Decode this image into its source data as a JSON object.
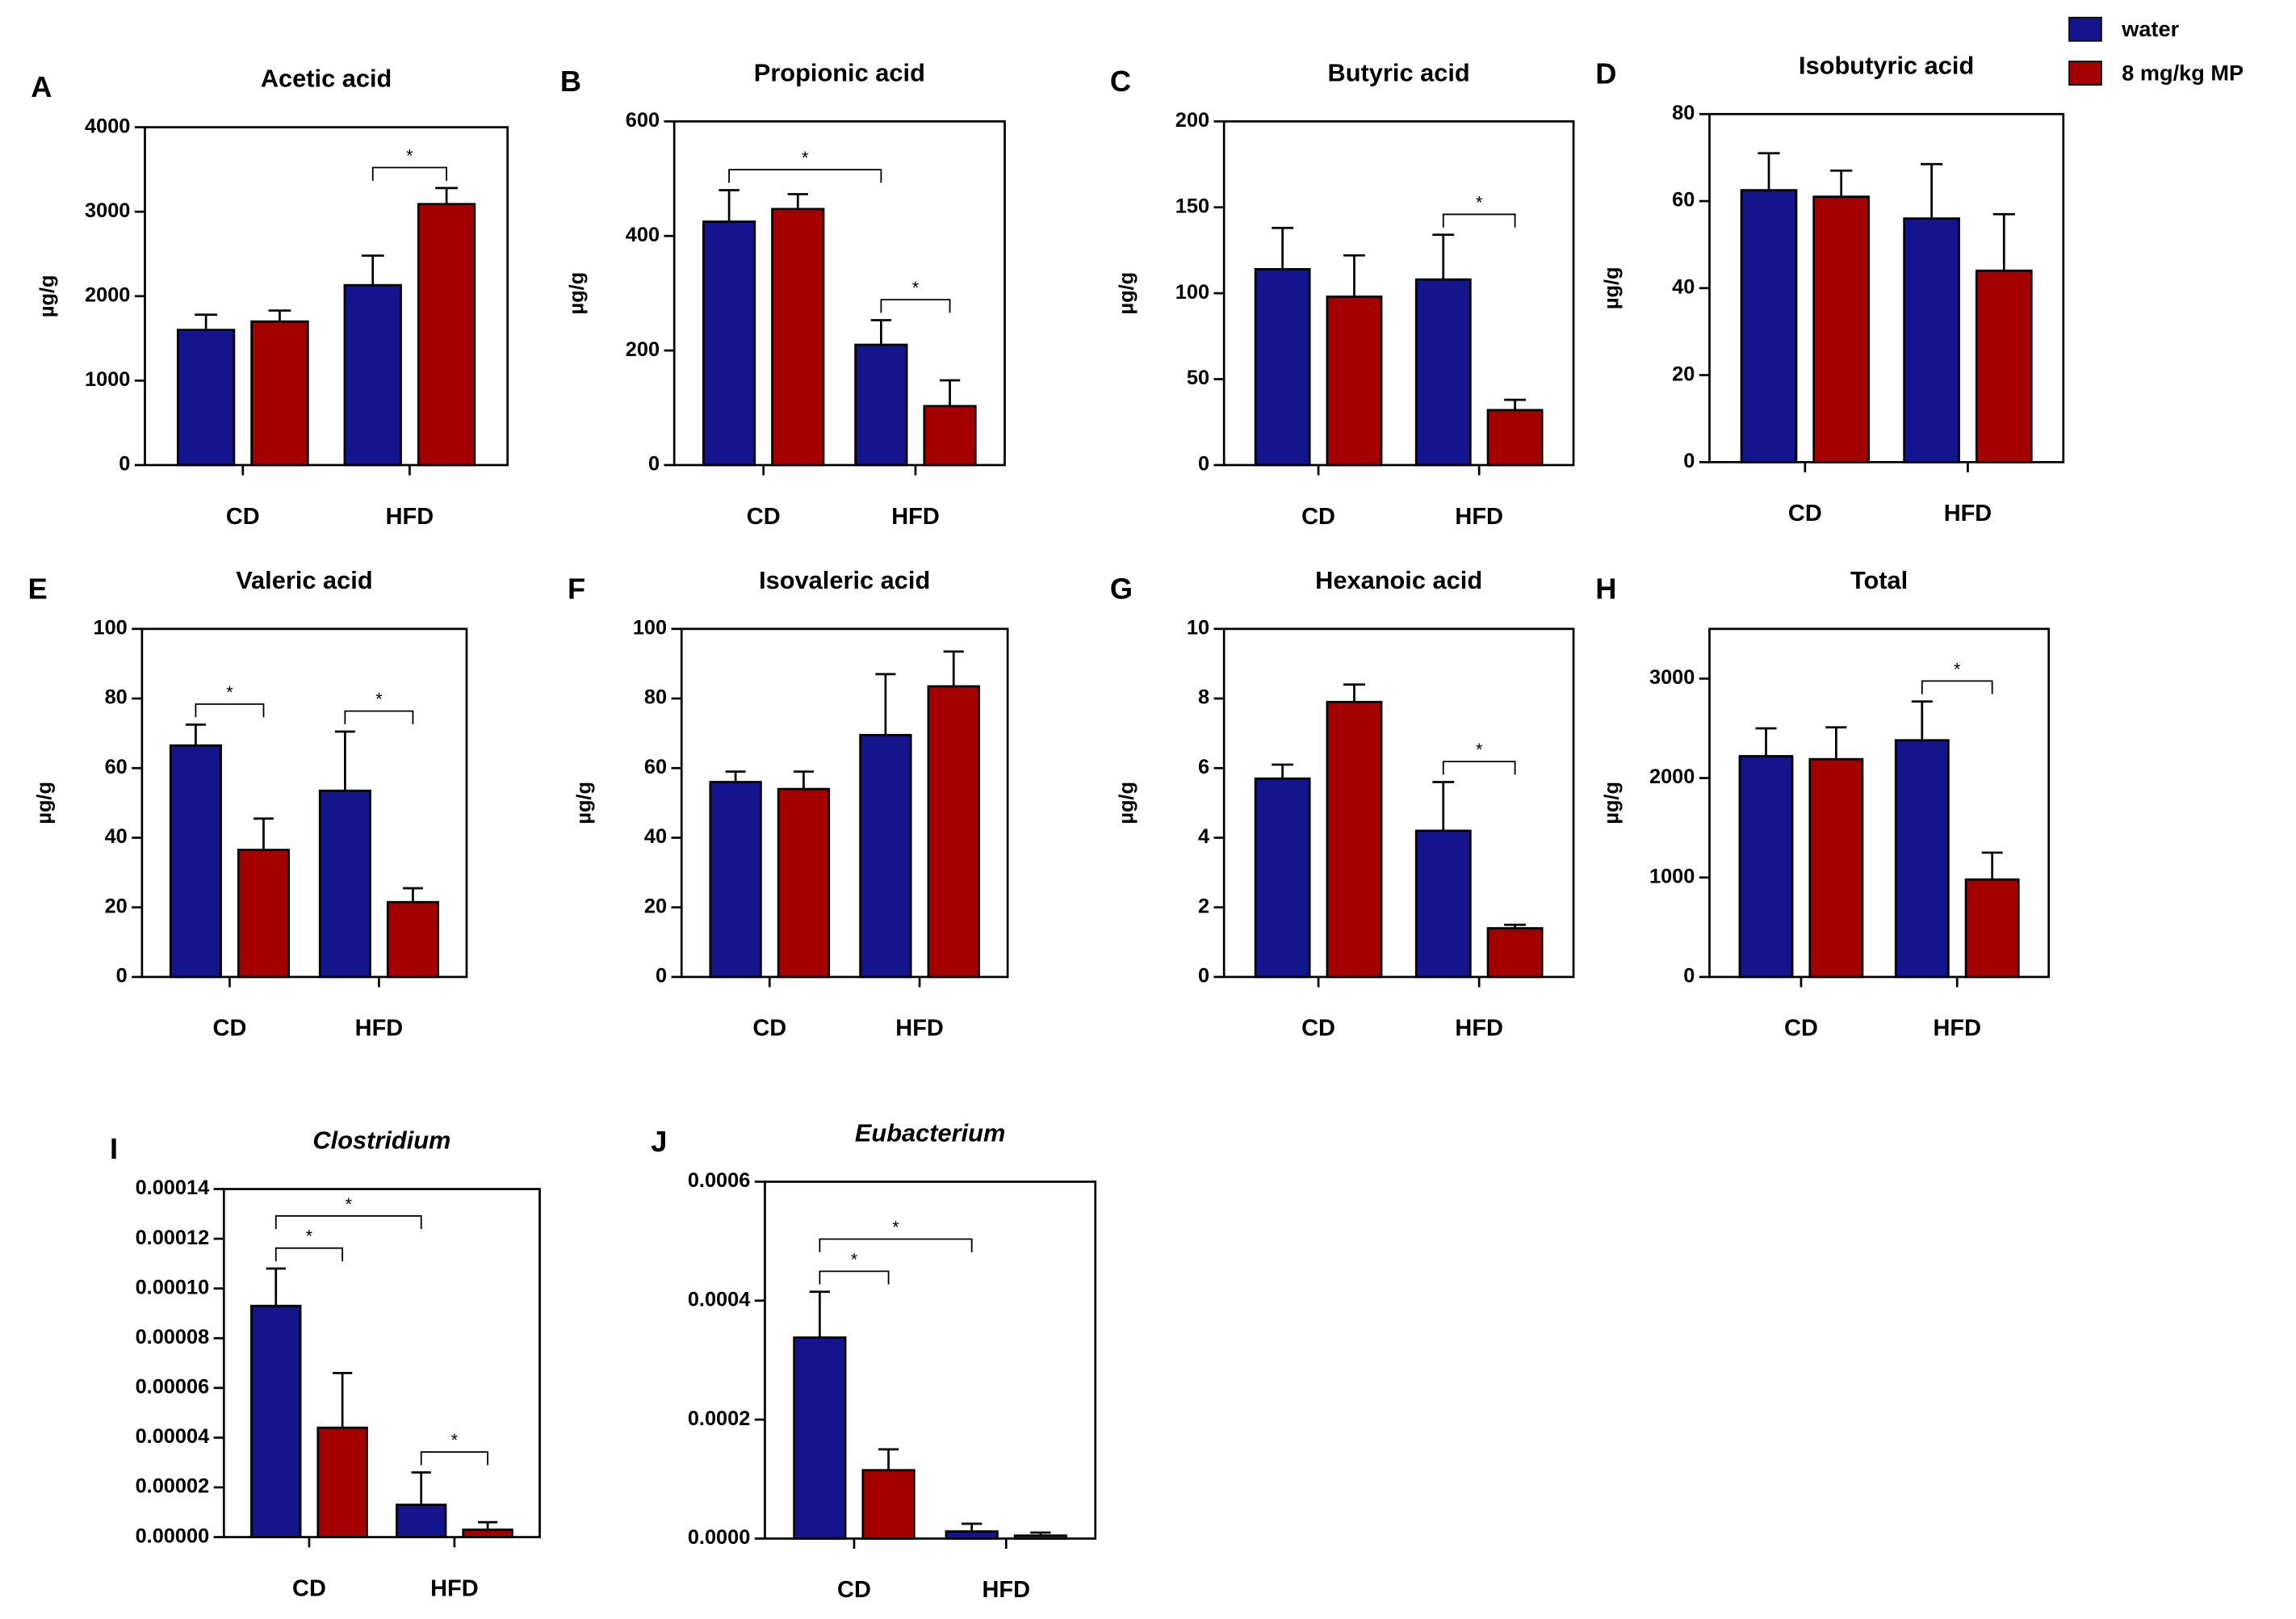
{
  "chart_data": [
    {
      "type": "bar",
      "panel": "A",
      "title": "Acetic acid",
      "y_label": "µg/g",
      "categories": [
        "CD",
        "HFD"
      ],
      "series": [
        {
          "name": "water",
          "color": "#14148c",
          "values": [
            1600,
            2130
          ],
          "errors": [
            180,
            350
          ]
        },
        {
          "name": "8 mg/kg MP",
          "color": "#a50000",
          "values": [
            1700,
            3090
          ],
          "errors": [
            130,
            190
          ]
        }
      ],
      "ylim": [
        0,
        4000
      ],
      "yticks": [
        0,
        1000,
        2000,
        3000,
        4000
      ],
      "annotations": [
        {
          "text": "*",
          "from": [
            1,
            0
          ],
          "to": [
            1,
            1
          ]
        }
      ]
    },
    {
      "type": "bar",
      "panel": "B",
      "title": "Propionic acid",
      "y_label": "µg/g",
      "categories": [
        "CD",
        "HFD"
      ],
      "series": [
        {
          "name": "water",
          "color": "#14148c",
          "values": [
            425,
            210
          ],
          "errors": [
            55,
            43
          ]
        },
        {
          "name": "8 mg/kg MP",
          "color": "#a50000",
          "values": [
            447,
            103
          ],
          "errors": [
            26,
            45
          ]
        }
      ],
      "ylim": [
        0,
        600
      ],
      "yticks": [
        0,
        200,
        400,
        600
      ],
      "annotations": [
        {
          "text": "*",
          "from": [
            0,
            0
          ],
          "to": [
            1,
            0
          ]
        },
        {
          "text": "*",
          "from": [
            1,
            0
          ],
          "to": [
            1,
            1
          ]
        }
      ]
    },
    {
      "type": "bar",
      "panel": "C",
      "title": "Butyric acid",
      "y_label": "µg/g",
      "categories": [
        "CD",
        "HFD"
      ],
      "series": [
        {
          "name": "water",
          "color": "#14148c",
          "values": [
            114,
            108
          ],
          "errors": [
            24,
            26
          ]
        },
        {
          "name": "8 mg/kg MP",
          "color": "#a50000",
          "values": [
            98,
            32
          ],
          "errors": [
            24,
            6
          ]
        }
      ],
      "ylim": [
        0,
        200
      ],
      "yticks": [
        0,
        50,
        100,
        150,
        200
      ],
      "annotations": [
        {
          "text": "*",
          "from": [
            1,
            0
          ],
          "to": [
            1,
            1
          ]
        }
      ]
    },
    {
      "type": "bar",
      "panel": "D",
      "title": "Isobutyric acid",
      "y_label": "µg/g",
      "categories": [
        "CD",
        "HFD"
      ],
      "series": [
        {
          "name": "water",
          "color": "#14148c",
          "values": [
            62.5,
            56
          ],
          "errors": [
            8.5,
            12.5
          ]
        },
        {
          "name": "8 mg/kg MP",
          "color": "#a50000",
          "values": [
            61,
            44
          ],
          "errors": [
            6,
            13
          ]
        }
      ],
      "ylim": [
        0,
        80
      ],
      "yticks": [
        0,
        20,
        40,
        60,
        80
      ],
      "annotations": []
    },
    {
      "type": "bar",
      "panel": "E",
      "title": "Valeric acid",
      "y_label": "µg/g",
      "categories": [
        "CD",
        "HFD"
      ],
      "series": [
        {
          "name": "water",
          "color": "#14148c",
          "values": [
            66.5,
            53.5
          ],
          "errors": [
            6,
            17
          ]
        },
        {
          "name": "8 mg/kg MP",
          "color": "#a50000",
          "values": [
            36.5,
            21.5
          ],
          "errors": [
            9,
            4
          ]
        }
      ],
      "ylim": [
        0,
        100
      ],
      "yticks": [
        0,
        20,
        40,
        60,
        80,
        100
      ],
      "annotations": [
        {
          "text": "*",
          "from": [
            0,
            0
          ],
          "to": [
            0,
            1
          ]
        },
        {
          "text": "*",
          "from": [
            1,
            0
          ],
          "to": [
            1,
            1
          ]
        }
      ]
    },
    {
      "type": "bar",
      "panel": "F",
      "title": "Isovaleric acid",
      "y_label": "µg/g",
      "categories": [
        "CD",
        "HFD"
      ],
      "series": [
        {
          "name": "water",
          "color": "#14148c",
          "values": [
            56,
            69.5
          ],
          "errors": [
            3,
            17.5
          ]
        },
        {
          "name": "8 mg/kg MP",
          "color": "#a50000",
          "values": [
            54,
            83.5
          ],
          "errors": [
            5,
            10
          ]
        }
      ],
      "ylim": [
        0,
        100
      ],
      "yticks": [
        0,
        20,
        40,
        60,
        80,
        100
      ],
      "annotations": []
    },
    {
      "type": "bar",
      "panel": "G",
      "title": "Hexanoic acid",
      "y_label": "µg/g",
      "categories": [
        "CD",
        "HFD"
      ],
      "series": [
        {
          "name": "water",
          "color": "#14148c",
          "values": [
            5.7,
            4.2
          ],
          "errors": [
            0.4,
            1.4
          ]
        },
        {
          "name": "8 mg/kg MP",
          "color": "#a50000",
          "values": [
            7.9,
            1.4
          ],
          "errors": [
            0.5,
            0.1
          ]
        }
      ],
      "ylim": [
        0,
        10
      ],
      "yticks": [
        0,
        2,
        4,
        6,
        8,
        10
      ],
      "annotations": [
        {
          "text": "*",
          "from": [
            1,
            0
          ],
          "to": [
            1,
            1
          ]
        }
      ]
    },
    {
      "type": "bar",
      "panel": "H",
      "title": "Total",
      "y_label": "µg/g",
      "categories": [
        "CD",
        "HFD"
      ],
      "series": [
        {
          "name": "water",
          "color": "#14148c",
          "values": [
            2220,
            2380
          ],
          "errors": [
            280,
            390
          ]
        },
        {
          "name": "8 mg/kg MP",
          "color": "#a50000",
          "values": [
            2190,
            980
          ],
          "errors": [
            320,
            270
          ]
        }
      ],
      "ylim": [
        0,
        3500
      ],
      "yticks": [
        0,
        1000,
        2000,
        3000
      ],
      "annotations": [
        {
          "text": "*",
          "from": [
            1,
            0
          ],
          "to": [
            1,
            1
          ]
        }
      ]
    },
    {
      "type": "bar",
      "panel": "I",
      "title": "Clostridium",
      "title_italic": true,
      "categories": [
        "CD",
        "HFD"
      ],
      "series": [
        {
          "name": "water",
          "color": "#14148c",
          "values": [
            9.3e-05,
            1.3e-05
          ],
          "errors": [
            1.5e-05,
            1.3e-05
          ]
        },
        {
          "name": "8 mg/kg MP",
          "color": "#a50000",
          "values": [
            4.4e-05,
            3e-06
          ],
          "errors": [
            2.2e-05,
            3e-06
          ]
        }
      ],
      "ylim": [
        0,
        0.00014
      ],
      "yticks": [
        {
          "value": 0,
          "label": "0.00000"
        },
        {
          "value": 2e-05,
          "label": "0.00002"
        },
        {
          "value": 4e-05,
          "label": "0.00004"
        },
        {
          "value": 6e-05,
          "label": "0.00006"
        },
        {
          "value": 8e-05,
          "label": "0.00008"
        },
        {
          "value": 0.0001,
          "label": "0.00010"
        },
        {
          "value": 0.00012,
          "label": "0.00012"
        },
        {
          "value": 0.00014,
          "label": "0.00014"
        }
      ],
      "annotations": [
        {
          "text": "*",
          "from": [
            0,
            0
          ],
          "to": [
            0,
            1
          ]
        },
        {
          "text": "*",
          "from": [
            0,
            0
          ],
          "to": [
            1,
            0
          ]
        },
        {
          "text": "*",
          "from": [
            1,
            0
          ],
          "to": [
            1,
            1
          ]
        }
      ]
    },
    {
      "type": "bar",
      "panel": "J",
      "title": "Eubacterium",
      "title_italic": true,
      "categories": [
        "CD",
        "HFD"
      ],
      "series": [
        {
          "name": "water",
          "color": "#14148c",
          "values": [
            0.000338,
            1.2e-05
          ],
          "errors": [
            7.7e-05,
            1.3e-05
          ]
        },
        {
          "name": "8 mg/kg MP",
          "color": "#a50000",
          "values": [
            0.000115,
            5e-06
          ],
          "errors": [
            3.5e-05,
            5e-06
          ]
        }
      ],
      "ylim": [
        0,
        0.0006
      ],
      "yticks": [
        {
          "value": 0,
          "label": "0.0000"
        },
        {
          "value": 0.0002,
          "label": "0.0002"
        },
        {
          "value": 0.0004,
          "label": "0.0004"
        },
        {
          "value": 0.0006,
          "label": "0.0006"
        }
      ],
      "annotations": [
        {
          "text": "*",
          "from": [
            0,
            0
          ],
          "to": [
            0,
            1
          ]
        },
        {
          "text": "*",
          "from": [
            0,
            0
          ],
          "to": [
            1,
            0
          ]
        }
      ]
    }
  ]
}
